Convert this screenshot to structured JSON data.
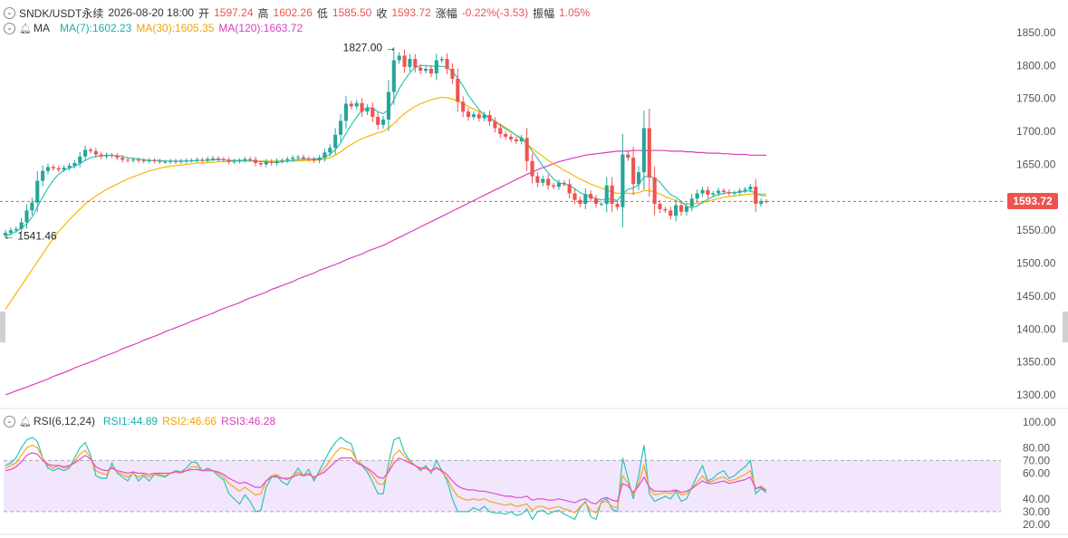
{
  "header": {
    "symbol": "SNDK/USDT永续",
    "datetime": "2026-08-20 18:00",
    "open_label": "开",
    "open": "1597.24",
    "high_label": "高",
    "high": "1602.26",
    "low_label": "低",
    "low": "1585.50",
    "close_label": "收",
    "close": "1593.72",
    "change_label": "涨幅",
    "change": "-0.22%(-3.53)",
    "amplitude_label": "振幅",
    "amplitude": "1.05%"
  },
  "ma_legend": {
    "label": "MA",
    "ma7": "MA(7):1602.23",
    "ma30": "MA(30):1605.35",
    "ma120": "MA(120):1663.72"
  },
  "rsi_legend": {
    "label": "RSI(6,12,24)",
    "rsi1": "RSI1:44.89",
    "rsi2": "RSI2:46.66",
    "rsi3": "RSI3:46.28"
  },
  "price_tag": "1593.72",
  "colors": {
    "up": "#26a69a",
    "down": "#ef5350",
    "ma7": "#2ec4b6",
    "ma30": "#f5b700",
    "ma120": "#d63fbf",
    "rsi1": "#2ec4b6",
    "rsi2": "#f5a623",
    "rsi3": "#e24bd0",
    "rsi_band": "#f1e6fb"
  },
  "chart_data": [
    {
      "type": "candlestick",
      "title": "SNDK/USDT永续",
      "ylim": [
        1300,
        1850
      ],
      "yticks": [
        "1850.00",
        "1800.00",
        "1750.00",
        "1700.00",
        "1650.00",
        "1600.00",
        "1550.00",
        "1500.00",
        "1450.00",
        "1400.00",
        "1350.00",
        "1300.00"
      ],
      "last_price": 1593.72,
      "annotations": [
        {
          "text": "1827.00",
          "value": 1827.0
        },
        {
          "text": "1541.46",
          "value": 1541.46
        }
      ],
      "close": [
        1546,
        1550,
        1552,
        1562,
        1580,
        1592,
        1625,
        1640,
        1646,
        1644,
        1642,
        1645,
        1648,
        1652,
        1662,
        1672,
        1670,
        1665,
        1662,
        1664,
        1663,
        1660,
        1657,
        1656,
        1657,
        1656,
        1655,
        1656,
        1655,
        1654,
        1654,
        1655,
        1654,
        1655,
        1656,
        1656,
        1657,
        1656,
        1658,
        1659,
        1658,
        1657,
        1654,
        1655,
        1656,
        1658,
        1657,
        1652,
        1650,
        1654,
        1652,
        1655,
        1656,
        1658,
        1660,
        1661,
        1659,
        1658,
        1656,
        1660,
        1668,
        1675,
        1695,
        1716,
        1742,
        1738,
        1743,
        1730,
        1736,
        1722,
        1710,
        1718,
        1760,
        1808,
        1815,
        1798,
        1810,
        1797,
        1792,
        1795,
        1788,
        1808,
        1810,
        1795,
        1780,
        1745,
        1730,
        1722,
        1726,
        1720,
        1725,
        1715,
        1705,
        1696,
        1692,
        1688,
        1685,
        1690,
        1655,
        1632,
        1622,
        1628,
        1618,
        1616,
        1622,
        1620,
        1606,
        1596,
        1590,
        1605,
        1598,
        1590,
        1590,
        1618,
        1590,
        1585,
        1665,
        1660,
        1620,
        1638,
        1705,
        1630,
        1590,
        1582,
        1580,
        1572,
        1588,
        1578,
        1586,
        1598,
        1606,
        1611,
        1604,
        1606,
        1610,
        1608,
        1606,
        1607,
        1610,
        1612,
        1616,
        1590,
        1594,
        1593.72
      ],
      "ma7": [
        1541,
        1544,
        1548,
        1553,
        1560,
        1570,
        1585,
        1600,
        1614,
        1626,
        1635,
        1641,
        1644,
        1647,
        1651,
        1656,
        1660,
        1662,
        1663,
        1664,
        1664,
        1663,
        1662,
        1660,
        1659,
        1658,
        1657,
        1656,
        1656,
        1656,
        1655,
        1655,
        1655,
        1655,
        1655,
        1655,
        1656,
        1656,
        1656,
        1657,
        1657,
        1657,
        1656,
        1656,
        1656,
        1656,
        1656,
        1655,
        1654,
        1654,
        1653,
        1653,
        1654,
        1655,
        1656,
        1657,
        1658,
        1658,
        1658,
        1659,
        1661,
        1665,
        1672,
        1683,
        1697,
        1710,
        1722,
        1732,
        1736,
        1735,
        1730,
        1727,
        1733,
        1748,
        1765,
        1778,
        1789,
        1797,
        1800,
        1800,
        1799,
        1799,
        1799,
        1797,
        1791,
        1781,
        1769,
        1755,
        1744,
        1733,
        1725,
        1720,
        1715,
        1709,
        1704,
        1699,
        1694,
        1690,
        1682,
        1670,
        1659,
        1647,
        1637,
        1628,
        1622,
        1620,
        1618,
        1613,
        1607,
        1603,
        1601,
        1598,
        1596,
        1598,
        1597,
        1595,
        1605,
        1612,
        1614,
        1619,
        1631,
        1632,
        1629,
        1623,
        1613,
        1604,
        1600,
        1594,
        1586,
        1584,
        1587,
        1592,
        1597,
        1601,
        1604,
        1606,
        1607,
        1607,
        1608,
        1609,
        1610,
        1606,
        1603,
        1602.23
      ],
      "ma30": [
        1430,
        1442,
        1454,
        1466,
        1478,
        1490,
        1502,
        1514,
        1526,
        1538,
        1548,
        1557,
        1566,
        1574,
        1582,
        1590,
        1596,
        1602,
        1607,
        1612,
        1616,
        1620,
        1624,
        1628,
        1631,
        1634,
        1637,
        1640,
        1642,
        1644,
        1646,
        1647,
        1648,
        1649,
        1650,
        1651,
        1652,
        1652,
        1653,
        1653,
        1654,
        1654,
        1654,
        1655,
        1655,
        1655,
        1655,
        1655,
        1655,
        1655,
        1655,
        1655,
        1655,
        1655,
        1655,
        1655,
        1656,
        1656,
        1656,
        1657,
        1658,
        1660,
        1664,
        1669,
        1675,
        1680,
        1685,
        1689,
        1692,
        1695,
        1698,
        1700,
        1705,
        1712,
        1720,
        1727,
        1733,
        1738,
        1742,
        1745,
        1748,
        1750,
        1752,
        1751,
        1749,
        1746,
        1742,
        1738,
        1734,
        1730,
        1726,
        1721,
        1716,
        1711,
        1706,
        1700,
        1694,
        1688,
        1681,
        1674,
        1668,
        1662,
        1656,
        1651,
        1646,
        1641,
        1637,
        1632,
        1628,
        1624,
        1620,
        1617,
        1614,
        1611,
        1608,
        1606,
        1606,
        1606,
        1606,
        1607,
        1610,
        1610,
        1608,
        1605,
        1601,
        1598,
        1595,
        1592,
        1590,
        1590,
        1591,
        1592,
        1594,
        1596,
        1598,
        1600,
        1601,
        1602,
        1603,
        1604,
        1605,
        1605,
        1605,
        1605.35
      ],
      "ma120": [
        1300,
        1303,
        1306,
        1309,
        1312,
        1315,
        1318,
        1321,
        1324,
        1328,
        1331,
        1334,
        1337,
        1341,
        1344,
        1347,
        1350,
        1353,
        1357,
        1360,
        1363,
        1366,
        1370,
        1373,
        1376,
        1379,
        1383,
        1386,
        1389,
        1392,
        1396,
        1399,
        1402,
        1405,
        1408,
        1412,
        1415,
        1418,
        1421,
        1424,
        1428,
        1431,
        1434,
        1437,
        1440,
        1444,
        1447,
        1450,
        1453,
        1456,
        1460,
        1463,
        1466,
        1469,
        1472,
        1476,
        1479,
        1482,
        1485,
        1489,
        1492,
        1495,
        1498,
        1501,
        1505,
        1508,
        1511,
        1514,
        1518,
        1521,
        1524,
        1527,
        1531,
        1535,
        1539,
        1543,
        1547,
        1551,
        1555,
        1559,
        1563,
        1567,
        1571,
        1575,
        1579,
        1583,
        1587,
        1591,
        1595,
        1599,
        1603,
        1607,
        1611,
        1615,
        1619,
        1623,
        1627,
        1631,
        1635,
        1638,
        1642,
        1645,
        1648,
        1651,
        1654,
        1656,
        1658,
        1660,
        1662,
        1664,
        1665,
        1666,
        1667,
        1668,
        1669,
        1670,
        1670,
        1670,
        1671,
        1671,
        1671,
        1671,
        1671,
        1671,
        1671,
        1670,
        1670,
        1670,
        1669,
        1669,
        1668,
        1668,
        1667,
        1667,
        1667,
        1666,
        1666,
        1665,
        1665,
        1665,
        1664,
        1664,
        1664,
        1663.72
      ]
    },
    {
      "type": "line",
      "title": "RSI(6,12,24)",
      "ylim": [
        20,
        100
      ],
      "yticks": [
        "100.00",
        "80.00",
        "70.00",
        "60.00",
        "40.00",
        "30.00",
        "20.00"
      ],
      "band": [
        30,
        70
      ],
      "series": [
        {
          "name": "RSI1",
          "values": [
            66,
            68,
            72,
            80,
            86,
            88,
            85,
            72,
            64,
            62,
            64,
            62,
            64,
            72,
            80,
            84,
            74,
            58,
            56,
            56,
            68,
            60,
            57,
            54,
            61,
            54,
            58,
            54,
            59,
            58,
            57,
            60,
            62,
            61,
            64,
            69,
            68,
            62,
            64,
            62,
            58,
            55,
            44,
            40,
            36,
            43,
            38,
            30,
            31,
            49,
            57,
            58,
            53,
            51,
            58,
            64,
            58,
            63,
            54,
            62,
            70,
            78,
            84,
            88,
            85,
            83,
            70,
            66,
            61,
            53,
            44,
            44,
            68,
            86,
            88,
            76,
            70,
            66,
            62,
            66,
            60,
            70,
            62,
            54,
            40,
            30,
            30,
            30,
            33,
            31,
            34,
            30,
            29,
            29,
            28,
            30,
            27,
            28,
            32,
            24,
            30,
            31,
            28,
            30,
            31,
            28,
            26,
            24,
            33,
            38,
            26,
            24,
            38,
            40,
            32,
            30,
            72,
            56,
            40,
            58,
            82,
            44,
            38,
            40,
            42,
            40,
            46,
            38,
            40,
            49,
            58,
            66,
            54,
            56,
            60,
            62,
            56,
            58,
            62,
            65,
            70,
            44,
            48,
            44.89
          ]
        },
        {
          "name": "RSI2",
          "values": [
            64,
            66,
            68,
            74,
            80,
            82,
            80,
            72,
            66,
            64,
            66,
            64,
            65,
            69,
            75,
            78,
            72,
            62,
            60,
            59,
            65,
            61,
            59,
            57,
            60,
            57,
            59,
            57,
            59,
            59,
            58,
            60,
            61,
            60,
            62,
            65,
            65,
            62,
            63,
            62,
            60,
            57,
            52,
            49,
            46,
            49,
            46,
            43,
            44,
            54,
            58,
            59,
            56,
            55,
            58,
            61,
            58,
            60,
            56,
            60,
            64,
            70,
            76,
            80,
            79,
            78,
            70,
            67,
            63,
            58,
            52,
            51,
            62,
            74,
            78,
            73,
            69,
            66,
            63,
            64,
            61,
            65,
            61,
            56,
            48,
            42,
            40,
            39,
            40,
            39,
            40,
            38,
            37,
            36,
            35,
            36,
            34,
            35,
            36,
            31,
            34,
            34,
            32,
            33,
            34,
            32,
            31,
            29,
            34,
            37,
            31,
            29,
            37,
            38,
            34,
            33,
            58,
            52,
            43,
            52,
            66,
            48,
            43,
            44,
            45,
            44,
            47,
            43,
            44,
            48,
            53,
            58,
            53,
            54,
            56,
            57,
            54,
            55,
            57,
            59,
            62,
            48,
            50,
            46.66
          ]
        },
        {
          "name": "RSI3",
          "values": [
            62,
            63,
            65,
            69,
            74,
            76,
            75,
            70,
            67,
            66,
            66,
            65,
            66,
            68,
            71,
            74,
            71,
            65,
            63,
            62,
            64,
            62,
            61,
            60,
            61,
            60,
            60,
            59,
            60,
            60,
            60,
            60,
            61,
            61,
            62,
            63,
            63,
            62,
            62,
            62,
            61,
            59,
            56,
            54,
            52,
            53,
            51,
            49,
            49,
            54,
            57,
            57,
            56,
            56,
            57,
            59,
            58,
            59,
            57,
            59,
            61,
            65,
            69,
            72,
            72,
            72,
            68,
            66,
            64,
            61,
            57,
            56,
            61,
            68,
            72,
            70,
            68,
            66,
            64,
            64,
            62,
            64,
            62,
            59,
            54,
            50,
            48,
            47,
            47,
            46,
            46,
            45,
            44,
            43,
            42,
            42,
            41,
            41,
            42,
            39,
            40,
            40,
            39,
            39,
            40,
            39,
            38,
            37,
            39,
            40,
            37,
            36,
            40,
            41,
            39,
            38,
            52,
            50,
            45,
            50,
            57,
            49,
            46,
            46,
            46,
            46,
            47,
            45,
            46,
            48,
            51,
            54,
            52,
            52,
            53,
            54,
            52,
            53,
            54,
            55,
            57,
            48,
            49,
            46.28
          ]
        }
      ]
    }
  ]
}
